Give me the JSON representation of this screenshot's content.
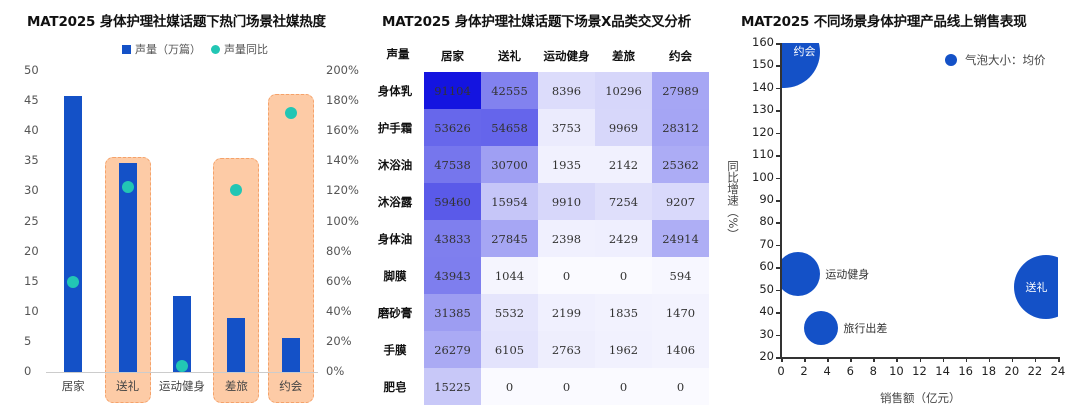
{
  "chart_data": [
    {
      "type": "bar",
      "title": "MAT2025 身体护理社媒话题下热门场景社媒热度",
      "categories": [
        "居家",
        "送礼",
        "运动健身",
        "差旅",
        "约会"
      ],
      "series": [
        {
          "name": "声量（万篇）",
          "axis": "left",
          "type": "bar",
          "color": "#1451c7",
          "values": [
            45.8,
            34.7,
            12.7,
            9.0,
            5.6
          ]
        },
        {
          "name": "声量同比",
          "axis": "right",
          "type": "scatter",
          "color": "#22c6b4",
          "values": [
            60,
            123,
            4,
            121,
            172
          ]
        }
      ],
      "highlighted_categories": [
        "送礼",
        "差旅",
        "约会"
      ],
      "highlight_color": "#fdcba6",
      "ylim": [
        0,
        50
      ],
      "y_ticks": [
        "0",
        "5",
        "10",
        "15",
        "20",
        "25",
        "30",
        "35",
        "40",
        "45",
        "50"
      ],
      "y2lim": [
        0,
        200
      ],
      "y2_ticks": [
        "0%",
        "20%",
        "40%",
        "60%",
        "80%",
        "100%",
        "120%",
        "140%",
        "160%",
        "180%",
        "200%"
      ],
      "legend_position": "top"
    },
    {
      "type": "heatmap",
      "title": "MAT2025 身体护理社媒话题下场景X品类交叉分析",
      "corner_label": "声量",
      "columns": [
        "居家",
        "送礼",
        "运动健身",
        "差旅",
        "约会"
      ],
      "rows": [
        "身体乳",
        "护手霜",
        "沐浴油",
        "沐浴露",
        "身体油",
        "脚膜",
        "磨砂膏",
        "手膜",
        "肥皂"
      ],
      "values": [
        [
          91104,
          42555,
          8396,
          10296,
          27989
        ],
        [
          53626,
          54658,
          3753,
          9969,
          28312
        ],
        [
          47538,
          30700,
          1935,
          2142,
          25362
        ],
        [
          59460,
          15954,
          9910,
          7254,
          9207
        ],
        [
          43833,
          27845,
          2398,
          2429,
          24914
        ],
        [
          43943,
          1044,
          0,
          0,
          594
        ],
        [
          31385,
          5532,
          2199,
          1835,
          1470
        ],
        [
          26279,
          6105,
          2763,
          1962,
          1406
        ],
        [
          15225,
          0,
          0,
          0,
          0
        ]
      ],
      "color_low": "#ffffff",
      "color_high": "#1414e0"
    },
    {
      "type": "scatter",
      "subtype": "bubble",
      "title": "MAT2025 不同场景身体护理产品线上销售表现",
      "xlabel": "销售额（亿元）",
      "ylabel": "同比增速（%）",
      "xlim": [
        0,
        24
      ],
      "ylim": [
        20,
        160
      ],
      "x_ticks": [
        "0",
        "2",
        "4",
        "6",
        "8",
        "10",
        "12",
        "14",
        "16",
        "18",
        "20",
        "22",
        "24"
      ],
      "y_ticks": [
        "20",
        "30",
        "40",
        "50",
        "60",
        "70",
        "80",
        "90",
        "100",
        "110",
        "120",
        "130",
        "140",
        "150",
        "160"
      ],
      "legend": "气泡大小：均价",
      "bubble_color": "#1451c7",
      "points": [
        {
          "name": "约会",
          "x": 0.3,
          "y": 156,
          "r": 36,
          "label_inside": true
        },
        {
          "name": "运动健身",
          "x": 1.5,
          "y": 57,
          "r": 22,
          "label_inside": false
        },
        {
          "name": "旅行出差",
          "x": 3.5,
          "y": 33,
          "r": 17,
          "label_inside": false
        },
        {
          "name": "送礼",
          "x": 23,
          "y": 51,
          "r": 32,
          "label_inside": true
        }
      ]
    }
  ],
  "left": {
    "title": "MAT2025 身体护理社媒话题下热门场景社媒热度",
    "legend_bar": "声量（万篇）",
    "legend_dot": "声量同比"
  },
  "middle": {
    "title": "MAT2025 身体护理社媒话题下场景X品类交叉分析"
  },
  "right": {
    "title": "MAT2025 不同场景身体护理产品线上销售表现",
    "legend": "气泡大小：均价",
    "xlabel": "销售额（亿元）",
    "ylabel": "同比增速（%）"
  }
}
